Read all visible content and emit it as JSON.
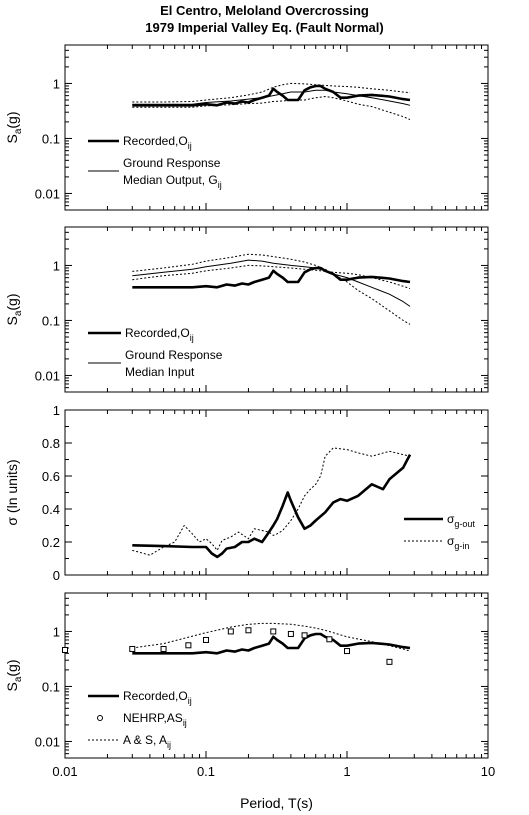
{
  "title_line1": "El Centro, Meloland Overcrossing",
  "title_line2": "1979 Imperial Valley Eq. (Fault Normal)",
  "x_axis": {
    "label": "Period, T(s)",
    "range": [
      0.01,
      10
    ],
    "scale": "log",
    "ticks": [
      0.01,
      0.1,
      1,
      10
    ],
    "tick_labels": [
      "0.01",
      "0.1",
      "1",
      "10"
    ]
  },
  "chart_data": [
    {
      "type": "line",
      "xscale": "log",
      "yscale": "log",
      "xlim": [
        0.01,
        10
      ],
      "ylim": [
        0.005,
        5
      ],
      "yticks": [
        0.01,
        0.1,
        1
      ],
      "ytick_labels": [
        "0.01",
        "0.1",
        "1"
      ],
      "ylabel_main": "S",
      "ylabel_sub": "a",
      "ylabel_tail": "(g)",
      "legend": [
        {
          "lines": [
            {
              "main": "Recorded,O",
              "sub": "ij"
            }
          ],
          "style": "thick"
        },
        {
          "lines": [
            {
              "main": "Ground Response",
              "sub": ""
            },
            {
              "main": "Median Output, G",
              "sub": "ij"
            }
          ],
          "style": "thin"
        }
      ],
      "series": [
        {
          "style": "thick",
          "x": [
            0.03,
            0.05,
            0.08,
            0.1,
            0.12,
            0.14,
            0.16,
            0.18,
            0.2,
            0.22,
            0.25,
            0.28,
            0.3,
            0.32,
            0.35,
            0.38,
            0.4,
            0.45,
            0.5,
            0.55,
            0.6,
            0.65,
            0.7,
            0.8,
            0.9,
            1.0,
            1.2,
            1.5,
            2.0,
            2.5,
            2.8
          ],
          "y": [
            0.4,
            0.4,
            0.4,
            0.42,
            0.4,
            0.45,
            0.43,
            0.47,
            0.45,
            0.5,
            0.55,
            0.6,
            0.8,
            0.7,
            0.6,
            0.5,
            0.5,
            0.5,
            0.75,
            0.85,
            0.9,
            0.9,
            0.8,
            0.7,
            0.55,
            0.55,
            0.6,
            0.62,
            0.58,
            0.52,
            0.5
          ]
        },
        {
          "style": "thin",
          "x": [
            0.03,
            0.05,
            0.08,
            0.1,
            0.15,
            0.2,
            0.25,
            0.3,
            0.35,
            0.4,
            0.5,
            0.6,
            0.7,
            0.8,
            1.0,
            1.2,
            1.5,
            2.0,
            2.5,
            2.8
          ],
          "y": [
            0.42,
            0.42,
            0.42,
            0.45,
            0.48,
            0.52,
            0.55,
            0.6,
            0.65,
            0.7,
            0.7,
            0.75,
            0.75,
            0.7,
            0.65,
            0.6,
            0.55,
            0.48,
            0.43,
            0.4
          ]
        },
        {
          "style": "dot",
          "x": [
            0.03,
            0.05,
            0.08,
            0.1,
            0.15,
            0.2,
            0.25,
            0.3,
            0.35,
            0.4,
            0.5,
            0.6,
            0.7,
            0.8,
            1.0,
            1.2,
            1.5,
            2.0,
            2.5,
            2.8
          ],
          "y": [
            0.46,
            0.46,
            0.47,
            0.5,
            0.55,
            0.62,
            0.7,
            0.85,
            0.95,
            1.0,
            0.98,
            0.95,
            0.92,
            0.9,
            0.88,
            0.85,
            0.8,
            0.75,
            0.7,
            0.68
          ]
        },
        {
          "style": "dot",
          "x": [
            0.03,
            0.05,
            0.08,
            0.1,
            0.15,
            0.2,
            0.25,
            0.3,
            0.35,
            0.4,
            0.5,
            0.6,
            0.7,
            0.8,
            1.0,
            1.2,
            1.5,
            2.0,
            2.5,
            2.8
          ],
          "y": [
            0.37,
            0.37,
            0.37,
            0.39,
            0.41,
            0.43,
            0.44,
            0.47,
            0.48,
            0.5,
            0.5,
            0.55,
            0.58,
            0.55,
            0.48,
            0.42,
            0.38,
            0.3,
            0.25,
            0.22
          ]
        }
      ]
    },
    {
      "type": "line",
      "xscale": "log",
      "yscale": "log",
      "xlim": [
        0.01,
        10
      ],
      "ylim": [
        0.005,
        5
      ],
      "yticks": [
        0.01,
        0.1,
        1
      ],
      "ytick_labels": [
        "0.01",
        "0.1",
        "1"
      ],
      "ylabel_main": "S",
      "ylabel_sub": "a",
      "ylabel_tail": "(g)",
      "legend": [
        {
          "lines": [
            {
              "main": "Recorded,O",
              "sub": "ij"
            }
          ],
          "style": "thick"
        },
        {
          "lines": [
            {
              "main": "Ground Response",
              "sub": ""
            },
            {
              "main": "Median Input",
              "sub": ""
            }
          ],
          "style": "thin"
        }
      ],
      "series": [
        {
          "style": "thick",
          "x": [
            0.03,
            0.05,
            0.08,
            0.1,
            0.12,
            0.14,
            0.16,
            0.18,
            0.2,
            0.22,
            0.25,
            0.28,
            0.3,
            0.32,
            0.35,
            0.38,
            0.4,
            0.45,
            0.5,
            0.55,
            0.6,
            0.65,
            0.7,
            0.8,
            0.9,
            1.0,
            1.2,
            1.5,
            2.0,
            2.5,
            2.8
          ],
          "y": [
            0.4,
            0.4,
            0.4,
            0.42,
            0.4,
            0.45,
            0.43,
            0.47,
            0.45,
            0.5,
            0.55,
            0.6,
            0.8,
            0.7,
            0.6,
            0.5,
            0.5,
            0.5,
            0.75,
            0.85,
            0.9,
            0.9,
            0.8,
            0.7,
            0.55,
            0.55,
            0.6,
            0.62,
            0.58,
            0.52,
            0.5
          ]
        },
        {
          "style": "thin",
          "x": [
            0.03,
            0.05,
            0.08,
            0.1,
            0.15,
            0.2,
            0.25,
            0.3,
            0.4,
            0.5,
            0.6,
            0.7,
            0.8,
            1.0,
            1.2,
            1.5,
            2.0,
            2.5,
            2.8
          ],
          "y": [
            0.65,
            0.75,
            0.85,
            0.95,
            1.1,
            1.25,
            1.2,
            1.1,
            1.0,
            0.95,
            0.9,
            0.8,
            0.7,
            0.6,
            0.5,
            0.4,
            0.3,
            0.22,
            0.18
          ]
        },
        {
          "style": "dot",
          "x": [
            0.03,
            0.05,
            0.08,
            0.1,
            0.15,
            0.2,
            0.25,
            0.3,
            0.4,
            0.5,
            0.6,
            0.7,
            0.8,
            1.0,
            1.2,
            1.5,
            2.0,
            2.5,
            2.8
          ],
          "y": [
            0.78,
            0.9,
            1.05,
            1.2,
            1.4,
            1.6,
            1.55,
            1.45,
            1.3,
            1.15,
            1.0,
            0.85,
            0.7,
            0.5,
            0.35,
            0.25,
            0.15,
            0.1,
            0.085
          ]
        },
        {
          "style": "dot",
          "x": [
            0.03,
            0.05,
            0.08,
            0.1,
            0.15,
            0.2,
            0.25,
            0.3,
            0.4,
            0.5,
            0.6,
            0.7,
            0.8,
            1.0,
            1.2,
            1.5,
            2.0,
            2.5,
            2.8
          ],
          "y": [
            0.55,
            0.65,
            0.72,
            0.8,
            0.9,
            1.0,
            0.98,
            0.95,
            0.9,
            0.85,
            0.82,
            0.78,
            0.75,
            0.72,
            0.68,
            0.6,
            0.5,
            0.42,
            0.38
          ]
        }
      ]
    },
    {
      "type": "line",
      "xscale": "log",
      "yscale": "linear",
      "xlim": [
        0.01,
        10
      ],
      "ylim": [
        0,
        1
      ],
      "yticks": [
        0,
        0.2,
        0.4,
        0.6,
        0.8,
        1
      ],
      "ytick_labels": [
        "0",
        "0.2",
        "0.4",
        "0.6",
        "0.8",
        "1"
      ],
      "ylabel_main": "σ (ln units)",
      "ylabel_sub": "",
      "ylabel_tail": "",
      "legend": [
        {
          "lines": [
            {
              "main": "σ",
              "sub": "g-out"
            }
          ],
          "style": "thick"
        },
        {
          "lines": [
            {
              "main": "σ",
              "sub": "g-in"
            }
          ],
          "style": "dot"
        }
      ],
      "series": [
        {
          "style": "thick",
          "x": [
            0.03,
            0.05,
            0.08,
            0.1,
            0.11,
            0.12,
            0.13,
            0.14,
            0.16,
            0.18,
            0.2,
            0.22,
            0.25,
            0.28,
            0.3,
            0.32,
            0.35,
            0.38,
            0.4,
            0.45,
            0.5,
            0.55,
            0.6,
            0.7,
            0.8,
            0.9,
            1.0,
            1.2,
            1.5,
            1.8,
            2.0,
            2.5,
            2.8
          ],
          "y": [
            0.18,
            0.175,
            0.17,
            0.17,
            0.13,
            0.11,
            0.13,
            0.16,
            0.17,
            0.2,
            0.2,
            0.22,
            0.2,
            0.26,
            0.3,
            0.34,
            0.42,
            0.5,
            0.45,
            0.35,
            0.28,
            0.3,
            0.33,
            0.38,
            0.44,
            0.46,
            0.45,
            0.48,
            0.55,
            0.52,
            0.58,
            0.65,
            0.73
          ]
        },
        {
          "style": "dot",
          "x": [
            0.03,
            0.04,
            0.05,
            0.06,
            0.07,
            0.08,
            0.09,
            0.1,
            0.11,
            0.12,
            0.13,
            0.15,
            0.17,
            0.2,
            0.22,
            0.25,
            0.28,
            0.3,
            0.32,
            0.35,
            0.4,
            0.45,
            0.5,
            0.55,
            0.6,
            0.65,
            0.7,
            0.8,
            1.0,
            1.2,
            1.5,
            2.0,
            2.5,
            2.8
          ],
          "y": [
            0.15,
            0.12,
            0.17,
            0.2,
            0.3,
            0.25,
            0.2,
            0.22,
            0.19,
            0.15,
            0.21,
            0.23,
            0.26,
            0.22,
            0.28,
            0.27,
            0.26,
            0.24,
            0.25,
            0.27,
            0.33,
            0.4,
            0.48,
            0.52,
            0.55,
            0.6,
            0.72,
            0.77,
            0.76,
            0.74,
            0.72,
            0.75,
            0.73,
            0.72
          ]
        }
      ]
    },
    {
      "type": "line",
      "xscale": "log",
      "yscale": "log",
      "xlim": [
        0.01,
        10
      ],
      "ylim": [
        0.005,
        5
      ],
      "yticks": [
        0.01,
        0.1,
        1
      ],
      "ytick_labels": [
        "0.01",
        "0.1",
        "1"
      ],
      "ylabel_main": "S",
      "ylabel_sub": "a",
      "ylabel_tail": "(g)",
      "legend": [
        {
          "lines": [
            {
              "main": "Recorded,O",
              "sub": "ij"
            }
          ],
          "style": "thick"
        },
        {
          "lines": [
            {
              "main": "NEHRP,AS",
              "sub": "ij"
            }
          ],
          "style": "marker"
        },
        {
          "lines": [
            {
              "main": "A & S, A",
              "sub": "ij"
            }
          ],
          "style": "dot"
        }
      ],
      "series": [
        {
          "style": "thick",
          "x": [
            0.03,
            0.05,
            0.08,
            0.1,
            0.12,
            0.14,
            0.16,
            0.18,
            0.2,
            0.22,
            0.25,
            0.28,
            0.3,
            0.32,
            0.35,
            0.38,
            0.4,
            0.45,
            0.5,
            0.55,
            0.6,
            0.65,
            0.7,
            0.8,
            0.9,
            1.0,
            1.2,
            1.5,
            2.0,
            2.5,
            2.8
          ],
          "y": [
            0.4,
            0.4,
            0.4,
            0.42,
            0.4,
            0.45,
            0.43,
            0.47,
            0.45,
            0.5,
            0.55,
            0.6,
            0.8,
            0.7,
            0.6,
            0.5,
            0.5,
            0.5,
            0.75,
            0.85,
            0.9,
            0.9,
            0.8,
            0.7,
            0.55,
            0.55,
            0.6,
            0.62,
            0.58,
            0.52,
            0.5
          ]
        },
        {
          "style": "dot",
          "x": [
            0.03,
            0.05,
            0.07,
            0.1,
            0.15,
            0.2,
            0.25,
            0.3,
            0.4,
            0.5,
            0.6,
            0.7,
            0.8,
            1.0,
            1.5,
            2.0,
            2.5,
            2.8
          ],
          "y": [
            0.5,
            0.6,
            0.75,
            0.95,
            1.2,
            1.35,
            1.4,
            1.4,
            1.35,
            1.25,
            1.15,
            1.05,
            0.95,
            0.8,
            0.65,
            0.55,
            0.48,
            0.44
          ]
        },
        {
          "style": "marker",
          "x": [
            0.01,
            0.03,
            0.05,
            0.075,
            0.1,
            0.15,
            0.2,
            0.3,
            0.4,
            0.5,
            0.75,
            1.0,
            2.0
          ],
          "y": [
            0.46,
            0.48,
            0.48,
            0.56,
            0.7,
            1.0,
            1.05,
            1.0,
            0.9,
            0.85,
            0.72,
            0.44,
            0.28
          ]
        }
      ]
    }
  ]
}
